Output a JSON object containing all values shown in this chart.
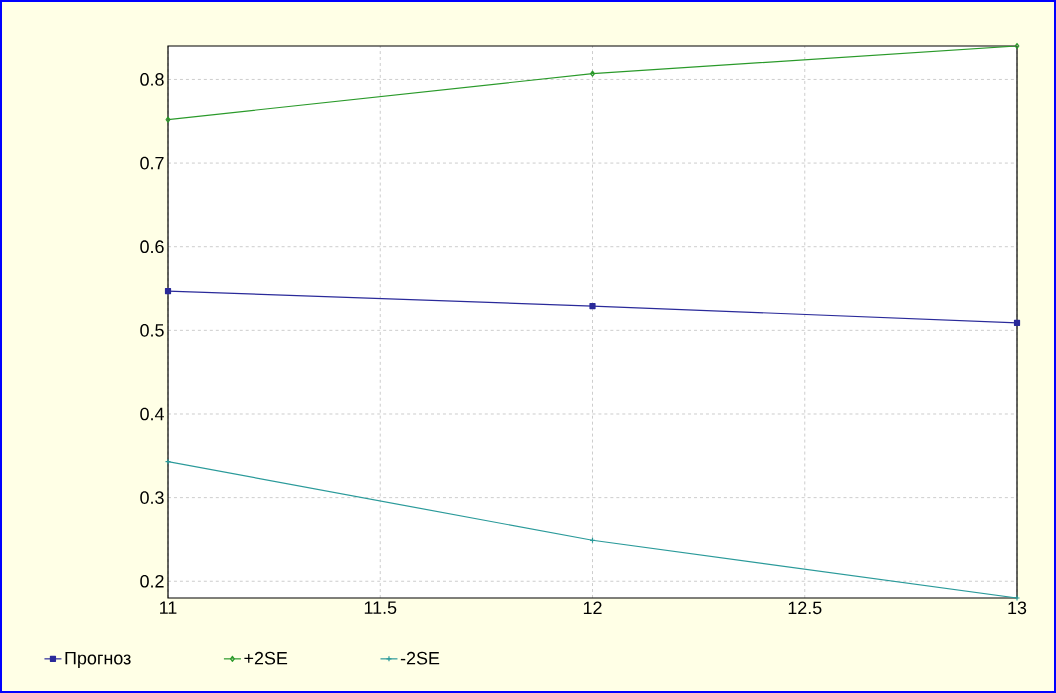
{
  "chart_data": {
    "type": "line",
    "x": [
      11,
      12,
      13
    ],
    "series": [
      {
        "name": "Прогноз",
        "color": "#2a2a9a",
        "marker": "square",
        "values": [
          0.547,
          0.529,
          0.509
        ]
      },
      {
        "name": "+2SE",
        "color": "#2a9a2a",
        "marker": "diamond",
        "values": [
          0.752,
          0.807,
          0.84
        ]
      },
      {
        "name": "-2SE",
        "color": "#2a9a9a",
        "marker": "cross",
        "values": [
          0.343,
          0.249,
          0.18
        ]
      }
    ],
    "xlim": [
      11,
      13
    ],
    "xticks": [
      11,
      11.5,
      12,
      12.5,
      13
    ],
    "ylim": [
      0.18,
      0.84
    ],
    "yticks": [
      0.2,
      0.3,
      0.4,
      0.5,
      0.6,
      0.7,
      0.8
    ],
    "grid": true,
    "legend": "bottom left",
    "line_style": "solid"
  }
}
